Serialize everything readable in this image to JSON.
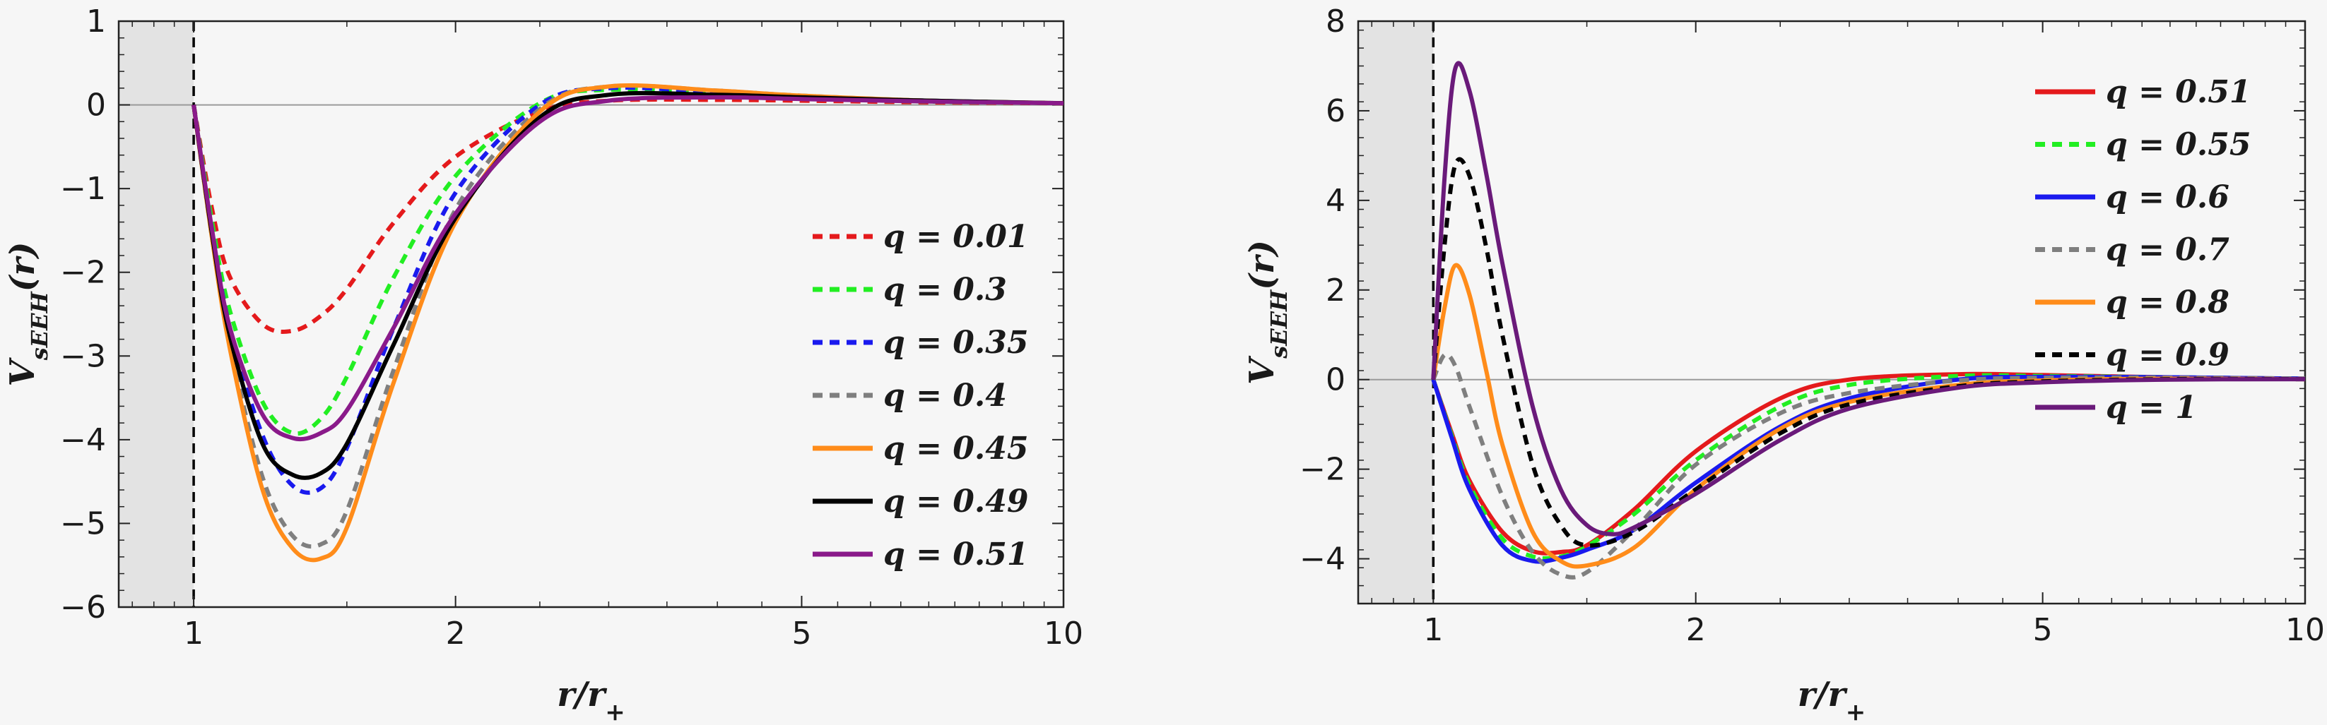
{
  "chart_data": [
    {
      "type": "line",
      "xscale": "log",
      "xlim": [
        0.82,
        10
      ],
      "ylim": [
        -6,
        1
      ],
      "xticks": [
        1,
        2,
        5,
        10
      ],
      "xtick_labels": [
        "1",
        "2",
        "5",
        "10"
      ],
      "yticks": [
        -6,
        -5,
        -4,
        -3,
        -2,
        -1,
        0,
        1
      ],
      "ytick_labels": [
        "−6",
        "−5",
        "−4",
        "−3",
        "−2",
        "−1",
        "0",
        "1"
      ],
      "xlabel": "r/r+",
      "ylabel": "VsEEH(r)",
      "shaded_region": [
        0.82,
        1
      ],
      "vline": 1,
      "legend_position": "right",
      "series": [
        {
          "name": "q = 0.01",
          "color": "#e41a1c",
          "dash": "dash",
          "x": [
            1,
            1.05,
            1.1,
            1.2,
            1.3,
            1.4,
            1.5,
            1.7,
            2.0,
            2.5,
            3.0,
            4.0,
            5.0,
            7.0,
            10.0
          ],
          "y": [
            0,
            -1.25,
            -2.05,
            -2.62,
            -2.7,
            -2.52,
            -2.2,
            -1.4,
            -0.62,
            -0.08,
            0.05,
            0.06,
            0.05,
            0.03,
            0.02
          ]
        },
        {
          "name": "q = 0.3",
          "color": "#22ee22",
          "dash": "dash",
          "x": [
            1,
            1.05,
            1.1,
            1.2,
            1.3,
            1.4,
            1.5,
            1.7,
            2.0,
            2.5,
            3.0,
            4.0,
            5.0,
            7.0,
            10.0
          ],
          "y": [
            0,
            -1.4,
            -2.45,
            -3.55,
            -3.92,
            -3.75,
            -3.25,
            -2.05,
            -0.85,
            0.02,
            0.18,
            0.13,
            0.08,
            0.04,
            0.02
          ]
        },
        {
          "name": "q = 0.35",
          "color": "#1a1aee",
          "dash": "dash",
          "x": [
            1,
            1.05,
            1.1,
            1.2,
            1.3,
            1.4,
            1.5,
            1.7,
            2.0,
            2.5,
            3.0,
            4.0,
            5.0,
            7.0,
            10.0
          ],
          "y": [
            0,
            -1.5,
            -2.65,
            -3.95,
            -4.55,
            -4.58,
            -4.1,
            -2.65,
            -1.05,
            0.0,
            0.2,
            0.15,
            0.1,
            0.05,
            0.02
          ]
        },
        {
          "name": "q = 0.4",
          "color": "#7f7f7f",
          "dash": "dash",
          "x": [
            1,
            1.05,
            1.1,
            1.2,
            1.3,
            1.4,
            1.5,
            1.7,
            2.0,
            2.5,
            3.0,
            4.0,
            5.0,
            7.0,
            10.0
          ],
          "y": [
            0,
            -1.6,
            -2.85,
            -4.45,
            -5.15,
            -5.25,
            -4.85,
            -3.15,
            -1.25,
            -0.05,
            0.22,
            0.17,
            0.11,
            0.05,
            0.02
          ]
        },
        {
          "name": "q = 0.45",
          "color": "#ff8c1a",
          "dash": "solid",
          "x": [
            1,
            1.05,
            1.1,
            1.2,
            1.3,
            1.4,
            1.5,
            1.7,
            2.0,
            2.5,
            3.0,
            4.0,
            5.0,
            7.0,
            10.0
          ],
          "y": [
            0,
            -1.6,
            -2.9,
            -4.6,
            -5.3,
            -5.42,
            -5.05,
            -3.3,
            -1.4,
            -0.08,
            0.22,
            0.17,
            0.11,
            0.05,
            0.02
          ]
        },
        {
          "name": "q = 0.49",
          "color": "#000000",
          "dash": "solid",
          "x": [
            1,
            1.05,
            1.1,
            1.2,
            1.3,
            1.4,
            1.5,
            1.7,
            2.0,
            2.5,
            3.0,
            4.0,
            5.0,
            7.0,
            10.0
          ],
          "y": [
            0,
            -1.55,
            -2.75,
            -4.05,
            -4.42,
            -4.4,
            -4.05,
            -2.85,
            -1.35,
            -0.15,
            0.12,
            0.12,
            0.09,
            0.05,
            0.02
          ]
        },
        {
          "name": "q = 0.51",
          "color": "#8a1a8a",
          "dash": "solid",
          "x": [
            1,
            1.05,
            1.1,
            1.2,
            1.3,
            1.4,
            1.5,
            1.7,
            2.0,
            2.5,
            3.0,
            4.0,
            5.0,
            7.0,
            10.0
          ],
          "y": [
            0,
            -1.5,
            -2.65,
            -3.7,
            -3.98,
            -3.92,
            -3.65,
            -2.65,
            -1.3,
            -0.2,
            0.05,
            0.09,
            0.07,
            0.04,
            0.02
          ]
        }
      ]
    },
    {
      "type": "line",
      "xscale": "log",
      "xlim": [
        0.82,
        10
      ],
      "ylim": [
        -5,
        8
      ],
      "xticks": [
        1,
        2,
        5,
        10
      ],
      "xtick_labels": [
        "1",
        "2",
        "5",
        "10"
      ],
      "yticks": [
        -4,
        -2,
        0,
        2,
        4,
        6,
        8
      ],
      "ytick_labels": [
        "−4",
        "−2",
        "0",
        "2",
        "4",
        "6",
        "8"
      ],
      "xlabel": "r/r+",
      "ylabel": "VsEEH(r)",
      "shaded_region": [
        0.82,
        1
      ],
      "vline": 1,
      "legend_position": "top-right",
      "series": [
        {
          "name": "q = 0.51",
          "color": "#e41a1c",
          "dash": "solid",
          "x": [
            1,
            1.05,
            1.1,
            1.2,
            1.3,
            1.4,
            1.5,
            1.7,
            2.0,
            2.5,
            3.0,
            4.0,
            5.0,
            7.0,
            10.0
          ],
          "y": [
            0,
            -1.2,
            -2.25,
            -3.4,
            -3.83,
            -3.85,
            -3.7,
            -2.9,
            -1.6,
            -0.42,
            0.0,
            0.12,
            0.1,
            0.05,
            0.02
          ]
        },
        {
          "name": "q = 0.55",
          "color": "#22ee22",
          "dash": "dash",
          "x": [
            1,
            1.05,
            1.1,
            1.2,
            1.3,
            1.4,
            1.5,
            1.7,
            2.0,
            2.5,
            3.0,
            4.0,
            5.0,
            7.0,
            10.0
          ],
          "y": [
            0,
            -1.25,
            -2.35,
            -3.55,
            -3.95,
            -3.95,
            -3.72,
            -3.0,
            -1.8,
            -0.6,
            -0.12,
            0.08,
            0.08,
            0.05,
            0.02
          ]
        },
        {
          "name": "q = 0.6",
          "color": "#1a1aee",
          "dash": "solid",
          "x": [
            1,
            1.05,
            1.1,
            1.2,
            1.3,
            1.4,
            1.5,
            1.7,
            2.0,
            2.5,
            3.0,
            4.0,
            5.0,
            7.0,
            10.0
          ],
          "y": [
            0,
            -1.3,
            -2.45,
            -3.7,
            -4.05,
            -3.98,
            -3.8,
            -3.35,
            -2.3,
            -1.05,
            -0.42,
            0.0,
            0.06,
            0.05,
            0.02
          ]
        },
        {
          "name": "q = 0.7",
          "color": "#7f7f7f",
          "dash": "dash",
          "x": [
            1,
            1.03,
            1.06,
            1.1,
            1.2,
            1.3,
            1.4,
            1.5,
            1.7,
            2.0,
            2.5,
            3.0,
            4.0,
            5.0,
            7.0,
            10.0
          ],
          "y": [
            0,
            0.55,
            0.3,
            -0.6,
            -2.6,
            -3.85,
            -4.35,
            -4.3,
            -3.35,
            -1.9,
            -0.75,
            -0.3,
            -0.02,
            0.04,
            0.04,
            0.02
          ]
        },
        {
          "name": "q = 0.8",
          "color": "#ff8c1a",
          "dash": "solid",
          "x": [
            1,
            1.03,
            1.06,
            1.1,
            1.15,
            1.2,
            1.3,
            1.4,
            1.5,
            1.7,
            2.0,
            2.5,
            3.0,
            4.0,
            5.0,
            7.0,
            10.0
          ],
          "y": [
            0,
            1.6,
            2.55,
            1.9,
            0.2,
            -1.45,
            -3.4,
            -4.05,
            -4.15,
            -3.75,
            -2.45,
            -1.1,
            -0.5,
            -0.12,
            -0.02,
            0.02,
            0.01
          ]
        },
        {
          "name": "q = 0.9",
          "color": "#000000",
          "dash": "dash",
          "x": [
            1,
            1.03,
            1.06,
            1.1,
            1.15,
            1.2,
            1.3,
            1.4,
            1.5,
            1.7,
            2.0,
            2.5,
            3.0,
            4.0,
            5.0,
            7.0,
            10.0
          ],
          "y": [
            0,
            3.0,
            4.8,
            4.55,
            2.95,
            1.0,
            -1.9,
            -3.25,
            -3.7,
            -3.4,
            -2.45,
            -1.2,
            -0.55,
            -0.15,
            -0.04,
            0.01,
            0.01
          ]
        },
        {
          "name": "q = 1",
          "color": "#6a1a7a",
          "dash": "solid",
          "x": [
            1,
            1.03,
            1.06,
            1.1,
            1.15,
            1.2,
            1.3,
            1.4,
            1.5,
            1.6,
            1.7,
            2.0,
            2.5,
            3.0,
            4.0,
            5.0,
            7.0,
            10.0
          ],
          "y": [
            0,
            4.5,
            6.95,
            6.45,
            4.6,
            2.6,
            -0.6,
            -2.45,
            -3.25,
            -3.45,
            -3.3,
            -2.55,
            -1.35,
            -0.65,
            -0.18,
            -0.06,
            0.0,
            0.01
          ]
        }
      ]
    }
  ]
}
